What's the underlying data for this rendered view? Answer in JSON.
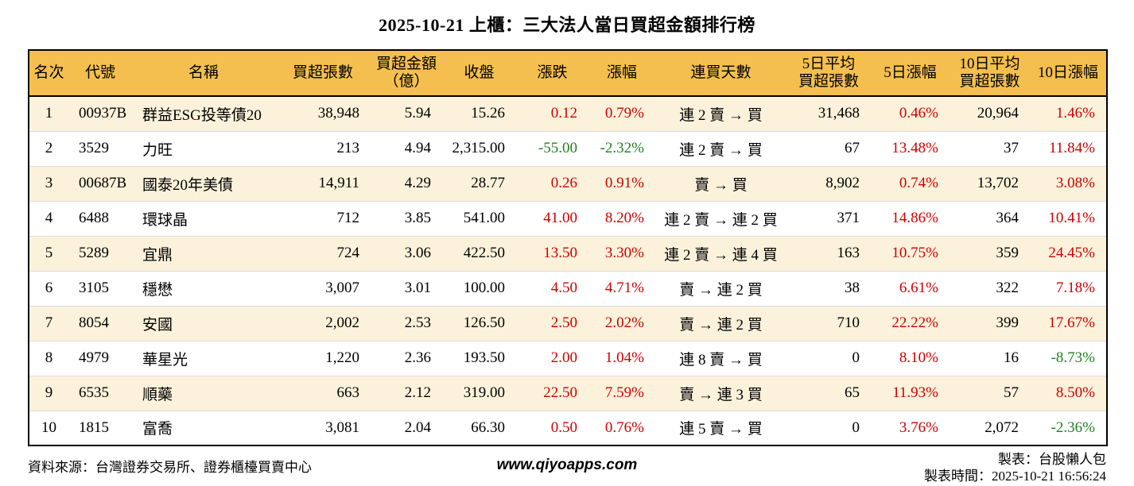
{
  "title": "2025-10-21 上櫃：三大法人當日買超金額排行榜",
  "colors": {
    "header_bg": "#F4BF4E",
    "row_odd_bg": "#FCF2DB",
    "row_even_bg": "#FFFFFF",
    "up_red": "#CC0000",
    "down_green": "#208020",
    "border": "#000000"
  },
  "table": {
    "columns": [
      {
        "key": "rank",
        "label": "名次",
        "align": "c"
      },
      {
        "key": "code",
        "label": "代號",
        "align": "l"
      },
      {
        "key": "name",
        "label": "名稱",
        "align": "l"
      },
      {
        "key": "net_buy_volume",
        "label": "買超張數",
        "align": "r"
      },
      {
        "key": "net_buy_amount",
        "label": "買超金額\n（億）",
        "align": "r"
      },
      {
        "key": "close",
        "label": "收盤",
        "align": "r"
      },
      {
        "key": "change",
        "label": "漲跌",
        "align": "r"
      },
      {
        "key": "change_pct",
        "label": "漲幅",
        "align": "r"
      },
      {
        "key": "streak",
        "label": "連買天數",
        "align": "c"
      },
      {
        "key": "avg5_volume",
        "label": "5日平均\n買超張數",
        "align": "r"
      },
      {
        "key": "chg5_pct",
        "label": "5日漲幅",
        "align": "r"
      },
      {
        "key": "avg10_volume",
        "label": "10日平均\n買超張數",
        "align": "r"
      },
      {
        "key": "chg10_pct",
        "label": "10日漲幅",
        "align": "r"
      }
    ],
    "rows": [
      [
        "1",
        "00937B",
        "群益ESG投等債20",
        "38,948",
        "5.94",
        "15.26",
        {
          "t": "0.12",
          "c": "red"
        },
        {
          "t": "0.79%",
          "c": "red"
        },
        "連 2 賣 → 買",
        "31,468",
        {
          "t": "0.46%",
          "c": "red"
        },
        "20,964",
        {
          "t": "1.46%",
          "c": "red"
        }
      ],
      [
        "2",
        "3529",
        "力旺",
        "213",
        "4.94",
        "2,315.00",
        {
          "t": "-55.00",
          "c": "green"
        },
        {
          "t": "-2.32%",
          "c": "green"
        },
        "連 2 賣 → 買",
        "67",
        {
          "t": "13.48%",
          "c": "red"
        },
        "37",
        {
          "t": "11.84%",
          "c": "red"
        }
      ],
      [
        "3",
        "00687B",
        "國泰20年美債",
        "14,911",
        "4.29",
        "28.77",
        {
          "t": "0.26",
          "c": "red"
        },
        {
          "t": "0.91%",
          "c": "red"
        },
        "賣 → 買",
        "8,902",
        {
          "t": "0.74%",
          "c": "red"
        },
        "13,702",
        {
          "t": "3.08%",
          "c": "red"
        }
      ],
      [
        "4",
        "6488",
        "環球晶",
        "712",
        "3.85",
        "541.00",
        {
          "t": "41.00",
          "c": "red"
        },
        {
          "t": "8.20%",
          "c": "red"
        },
        "連 2 賣 → 連 2 買",
        "371",
        {
          "t": "14.86%",
          "c": "red"
        },
        "364",
        {
          "t": "10.41%",
          "c": "red"
        }
      ],
      [
        "5",
        "5289",
        "宜鼎",
        "724",
        "3.06",
        "422.50",
        {
          "t": "13.50",
          "c": "red"
        },
        {
          "t": "3.30%",
          "c": "red"
        },
        "連 2 賣 → 連 4 買",
        "163",
        {
          "t": "10.75%",
          "c": "red"
        },
        "359",
        {
          "t": "24.45%",
          "c": "red"
        }
      ],
      [
        "6",
        "3105",
        "穩懋",
        "3,007",
        "3.01",
        "100.00",
        {
          "t": "4.50",
          "c": "red"
        },
        {
          "t": "4.71%",
          "c": "red"
        },
        "賣 → 連 2 買",
        "38",
        {
          "t": "6.61%",
          "c": "red"
        },
        "322",
        {
          "t": "7.18%",
          "c": "red"
        }
      ],
      [
        "7",
        "8054",
        "安國",
        "2,002",
        "2.53",
        "126.50",
        {
          "t": "2.50",
          "c": "red"
        },
        {
          "t": "2.02%",
          "c": "red"
        },
        "賣 → 連 2 買",
        "710",
        {
          "t": "22.22%",
          "c": "red"
        },
        "399",
        {
          "t": "17.67%",
          "c": "red"
        }
      ],
      [
        "8",
        "4979",
        "華星光",
        "1,220",
        "2.36",
        "193.50",
        {
          "t": "2.00",
          "c": "red"
        },
        {
          "t": "1.04%",
          "c": "red"
        },
        "連 8 賣 → 買",
        "0",
        {
          "t": "8.10%",
          "c": "red"
        },
        "16",
        {
          "t": "-8.73%",
          "c": "green"
        }
      ],
      [
        "9",
        "6535",
        "順藥",
        "663",
        "2.12",
        "319.00",
        {
          "t": "22.50",
          "c": "red"
        },
        {
          "t": "7.59%",
          "c": "red"
        },
        "賣 → 連 3 買",
        "65",
        {
          "t": "11.93%",
          "c": "red"
        },
        "57",
        {
          "t": "8.50%",
          "c": "red"
        }
      ],
      [
        "10",
        "1815",
        "富喬",
        "3,081",
        "2.04",
        "66.30",
        {
          "t": "0.50",
          "c": "red"
        },
        {
          "t": "0.76%",
          "c": "red"
        },
        "連 5 賣 → 買",
        "0",
        {
          "t": "3.76%",
          "c": "red"
        },
        "2,072",
        {
          "t": "-2.36%",
          "c": "green"
        }
      ]
    ]
  },
  "footer": {
    "source": "資料來源：台灣證券交易所、證券櫃檯買賣中心",
    "website": "www.qiyoapps.com",
    "maker": "製表：台股懶人包",
    "time": "製表時間：2025-10-21 16:56:24"
  },
  "chart_data": {
    "type": "table",
    "title": "2025-10-21 上櫃：三大法人當日買超金額排行榜",
    "columns": [
      "名次",
      "代號",
      "名稱",
      "買超張數",
      "買超金額（億）",
      "收盤",
      "漲跌",
      "漲幅",
      "連買天數",
      "5日平均買超張數",
      "5日漲幅",
      "10日平均買超張數",
      "10日漲幅"
    ],
    "rows": [
      [
        1,
        "00937B",
        "群益ESG投等債20",
        38948,
        5.94,
        15.26,
        0.12,
        "0.79%",
        "連2賣→買",
        31468,
        "0.46%",
        20964,
        "1.46%"
      ],
      [
        2,
        "3529",
        "力旺",
        213,
        4.94,
        2315.0,
        -55.0,
        "-2.32%",
        "連2賣→買",
        67,
        "13.48%",
        37,
        "11.84%"
      ],
      [
        3,
        "00687B",
        "國泰20年美債",
        14911,
        4.29,
        28.77,
        0.26,
        "0.91%",
        "賣→買",
        8902,
        "0.74%",
        13702,
        "3.08%"
      ],
      [
        4,
        "6488",
        "環球晶",
        712,
        3.85,
        541.0,
        41.0,
        "8.20%",
        "連2賣→連2買",
        371,
        "14.86%",
        364,
        "10.41%"
      ],
      [
        5,
        "5289",
        "宜鼎",
        724,
        3.06,
        422.5,
        13.5,
        "3.30%",
        "連2賣→連4買",
        163,
        "10.75%",
        359,
        "24.45%"
      ],
      [
        6,
        "3105",
        "穩懋",
        3007,
        3.01,
        100.0,
        4.5,
        "4.71%",
        "賣→連2買",
        38,
        "6.61%",
        322,
        "7.18%"
      ],
      [
        7,
        "8054",
        "安國",
        2002,
        2.53,
        126.5,
        2.5,
        "2.02%",
        "賣→連2買",
        710,
        "22.22%",
        399,
        "17.67%"
      ],
      [
        8,
        "4979",
        "華星光",
        1220,
        2.36,
        193.5,
        2.0,
        "1.04%",
        "連8賣→買",
        0,
        "8.10%",
        16,
        "-8.73%"
      ],
      [
        9,
        "6535",
        "順藥",
        663,
        2.12,
        319.0,
        22.5,
        "7.59%",
        "賣→連3買",
        65,
        "11.93%",
        57,
        "8.50%"
      ],
      [
        10,
        "1815",
        "富喬",
        3081,
        2.04,
        66.3,
        0.5,
        "0.76%",
        "連5賣→買",
        0,
        "3.76%",
        2072,
        "-2.36%"
      ]
    ]
  }
}
